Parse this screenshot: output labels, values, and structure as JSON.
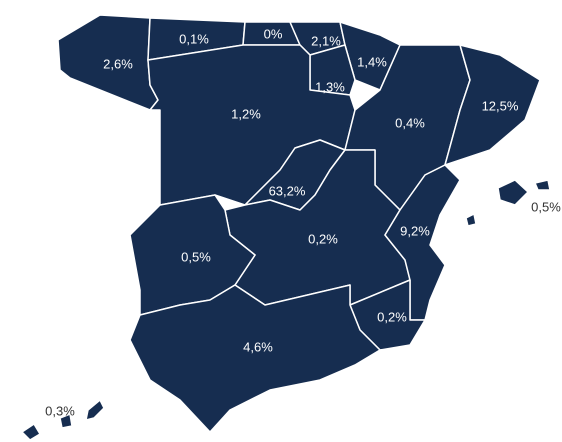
{
  "regions": [
    {
      "label": "2,6%"
    },
    {
      "label": "0,1%"
    },
    {
      "label": "0%"
    },
    {
      "label": "2,1%"
    },
    {
      "label": "1,4%"
    },
    {
      "label": "1,3%"
    },
    {
      "label": "1,2%"
    },
    {
      "label": "0,4%"
    },
    {
      "label": "12,5%"
    },
    {
      "label": "63,2%"
    },
    {
      "label": "0,2%"
    },
    {
      "label": "9,2%"
    },
    {
      "label": "0,2%"
    },
    {
      "label": "0,5%"
    },
    {
      "label": "4,6%"
    },
    {
      "label": "0,5%"
    },
    {
      "label": "0,3%"
    }
  ]
}
